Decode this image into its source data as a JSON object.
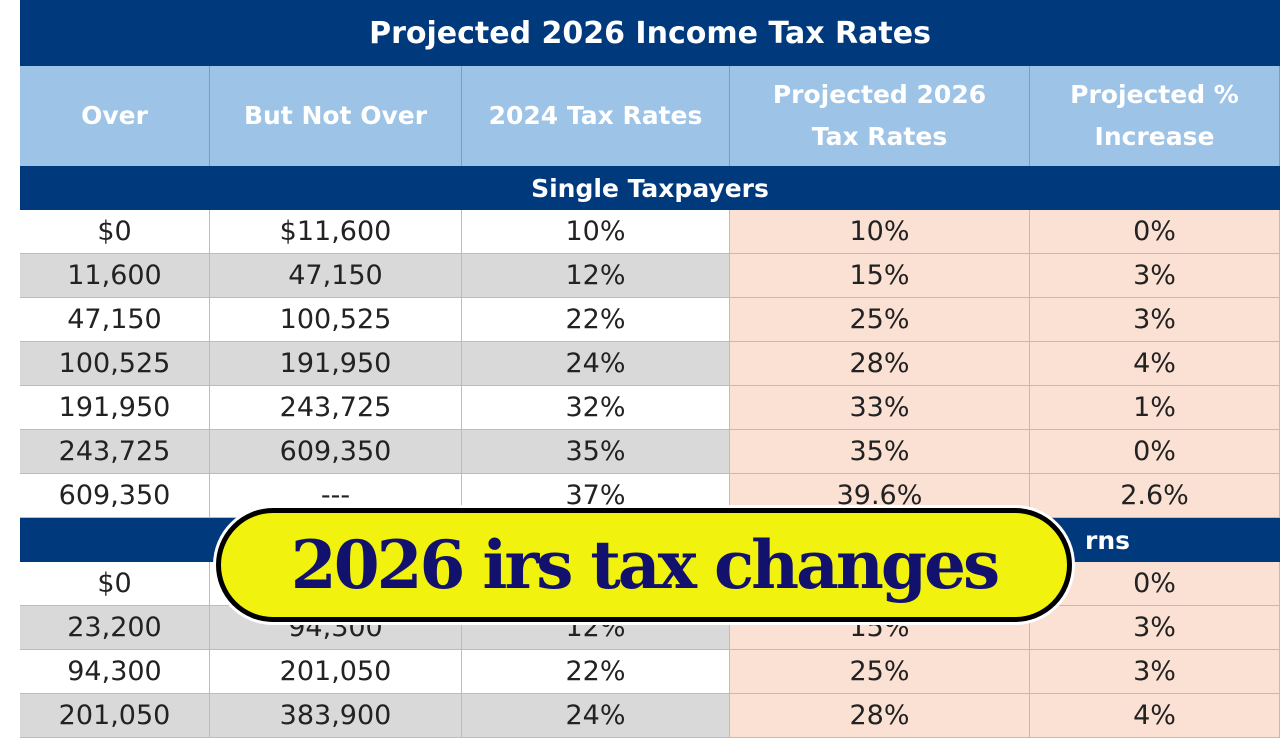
{
  "title": "Projected 2026 Income Tax Rates",
  "columns": [
    "Over",
    "But Not Over",
    "2024 Tax Rates",
    "Projected 2026 Tax Rates",
    "Projected % Increase"
  ],
  "sections": [
    {
      "label": "Single Taxpayers",
      "rows": [
        [
          "$0",
          "$11,600",
          "10%",
          "10%",
          "0%"
        ],
        [
          "11,600",
          "47,150",
          "12%",
          "15%",
          "3%"
        ],
        [
          "47,150",
          "100,525",
          "22%",
          "25%",
          "3%"
        ],
        [
          "100,525",
          "191,950",
          "24%",
          "28%",
          "4%"
        ],
        [
          "191,950",
          "243,725",
          "32%",
          "33%",
          "1%"
        ],
        [
          "243,725",
          "609,350",
          "35%",
          "35%",
          "0%"
        ],
        [
          "609,350",
          "---",
          "37%",
          "39.6%",
          "2.6%"
        ]
      ]
    },
    {
      "label": "rns",
      "rows": [
        [
          "$0",
          "",
          "",
          "",
          "0%"
        ],
        [
          "23,200",
          "94,300",
          "12%",
          "15%",
          "3%"
        ],
        [
          "94,300",
          "201,050",
          "22%",
          "25%",
          "3%"
        ],
        [
          "201,050",
          "383,900",
          "24%",
          "28%",
          "4%"
        ]
      ]
    }
  ],
  "banner": "2026 irs tax changes",
  "colors": {
    "navy": "#003a7d",
    "header_blue": "#9dc3e6",
    "gray_row": "#d9d9d9",
    "projected_pink": "#fbe0d4",
    "banner_yellow": "#f2f20f",
    "banner_text": "#12126e"
  }
}
